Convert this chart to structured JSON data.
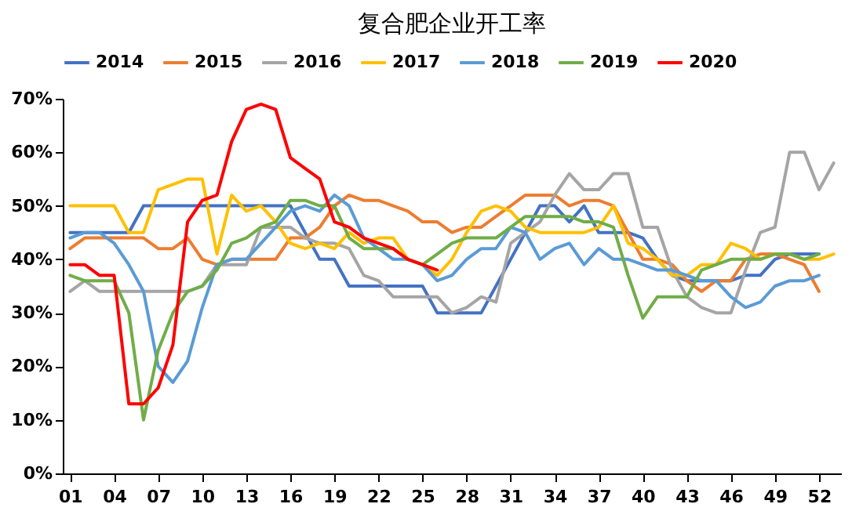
{
  "chart_data": {
    "type": "line",
    "title": "复合肥企业开工率",
    "legend": "top",
    "x": [
      1,
      2,
      3,
      4,
      5,
      6,
      7,
      8,
      9,
      10,
      11,
      12,
      13,
      14,
      15,
      16,
      17,
      18,
      19,
      20,
      21,
      22,
      23,
      24,
      25,
      26,
      27,
      28,
      29,
      30,
      31,
      32,
      33,
      34,
      35,
      36,
      37,
      38,
      39,
      40,
      41,
      42,
      43,
      44,
      45,
      46,
      47,
      48,
      49,
      50,
      51,
      52,
      53
    ],
    "xlim": [
      0.5,
      53.5
    ],
    "xticks": [
      {
        "value": 1,
        "label": "01"
      },
      {
        "value": 4,
        "label": "04"
      },
      {
        "value": 7,
        "label": "07"
      },
      {
        "value": 10,
        "label": "10"
      },
      {
        "value": 13,
        "label": "13"
      },
      {
        "value": 16,
        "label": "16"
      },
      {
        "value": 19,
        "label": "19"
      },
      {
        "value": 22,
        "label": "22"
      },
      {
        "value": 25,
        "label": "25"
      },
      {
        "value": 28,
        "label": "28"
      },
      {
        "value": 31,
        "label": "31"
      },
      {
        "value": 34,
        "label": "34"
      },
      {
        "value": 37,
        "label": "37"
      },
      {
        "value": 40,
        "label": "40"
      },
      {
        "value": 43,
        "label": "43"
      },
      {
        "value": 46,
        "label": "46"
      },
      {
        "value": 49,
        "label": "49"
      },
      {
        "value": 52,
        "label": "52"
      }
    ],
    "ylim": [
      0,
      70
    ],
    "yticks": [
      {
        "value": 0,
        "label": "0%"
      },
      {
        "value": 10,
        "label": "10%"
      },
      {
        "value": 20,
        "label": "20%"
      },
      {
        "value": 30,
        "label": "30%"
      },
      {
        "value": 40,
        "label": "40%"
      },
      {
        "value": 50,
        "label": "50%"
      },
      {
        "value": 60,
        "label": "60%"
      },
      {
        "value": 70,
        "label": "70%"
      }
    ],
    "series": [
      {
        "name": "2014",
        "color": "#4472c4",
        "values": [
          45,
          45,
          45,
          45,
          45,
          50,
          50,
          50,
          50,
          50,
          50,
          50,
          50,
          50,
          50,
          50,
          45,
          40,
          40,
          35,
          35,
          35,
          35,
          35,
          35,
          30,
          30,
          30,
          30,
          35,
          40,
          45,
          50,
          50,
          47,
          50,
          45,
          45,
          45,
          44,
          40,
          37,
          36,
          36,
          36,
          36,
          37,
          37,
          40,
          41,
          41,
          41,
          null
        ]
      },
      {
        "name": "2015",
        "color": "#ed7d31",
        "values": [
          42,
          44,
          44,
          44,
          44,
          44,
          42,
          42,
          44,
          40,
          39,
          40,
          40,
          40,
          40,
          44,
          44,
          46,
          50,
          52,
          51,
          51,
          50,
          49,
          47,
          47,
          45,
          46,
          46,
          48,
          50,
          52,
          52,
          52,
          50,
          51,
          51,
          50,
          45,
          40,
          40,
          39,
          36,
          34,
          36,
          36,
          40,
          41,
          41,
          40,
          39,
          34,
          null
        ]
      },
      {
        "name": "2016",
        "color": "#a5a5a5",
        "values": [
          34,
          36,
          34,
          34,
          34,
          34,
          34,
          34,
          34,
          35,
          39,
          39,
          39,
          46,
          46,
          46,
          44,
          43,
          43,
          42,
          37,
          36,
          33,
          33,
          33,
          33,
          30,
          31,
          33,
          32,
          43,
          45,
          47,
          52,
          56,
          53,
          53,
          56,
          56,
          46,
          46,
          38,
          33,
          31,
          30,
          30,
          38,
          45,
          46,
          60,
          60,
          53,
          58
        ]
      },
      {
        "name": "2017",
        "color": "#ffc000",
        "values": [
          50,
          50,
          50,
          50,
          45,
          45,
          53,
          54,
          55,
          55,
          41,
          52,
          49,
          50,
          47,
          43,
          42,
          43,
          42,
          45,
          43,
          44,
          44,
          40,
          39,
          37,
          40,
          45,
          49,
          50,
          49,
          46,
          45,
          45,
          45,
          45,
          46,
          50,
          43,
          42,
          40,
          37,
          37,
          39,
          39,
          43,
          42,
          40,
          41,
          41,
          40,
          40,
          41
        ]
      },
      {
        "name": "2018",
        "color": "#5b9bd5",
        "values": [
          44,
          45,
          45,
          43,
          39,
          34,
          20,
          17,
          21,
          31,
          39,
          40,
          40,
          43,
          46,
          49,
          50,
          49,
          52,
          50,
          44,
          42,
          40,
          40,
          39,
          36,
          37,
          40,
          42,
          42,
          46,
          45,
          40,
          42,
          43,
          39,
          42,
          40,
          40,
          39,
          38,
          38,
          37,
          36,
          36,
          33,
          31,
          32,
          35,
          36,
          36,
          37,
          null
        ]
      },
      {
        "name": "2019",
        "color": "#70ad47",
        "values": [
          37,
          36,
          36,
          36,
          30,
          10,
          23,
          30,
          34,
          35,
          38,
          43,
          44,
          46,
          47,
          51,
          51,
          50,
          50,
          44,
          42,
          42,
          42,
          40,
          39,
          41,
          43,
          44,
          44,
          44,
          46,
          48,
          48,
          48,
          48,
          47,
          47,
          46,
          37,
          29,
          33,
          33,
          33,
          38,
          39,
          40,
          40,
          40,
          41,
          41,
          40,
          41,
          null
        ]
      },
      {
        "name": "2020",
        "color": "#ff0000",
        "values": [
          39,
          39,
          37,
          37,
          13,
          13,
          16,
          24,
          47,
          51,
          52,
          62,
          68,
          69,
          68,
          59,
          57,
          55,
          47,
          46,
          44,
          43,
          42,
          40,
          39,
          38,
          null,
          null,
          null,
          null,
          null,
          null,
          null,
          null,
          null,
          null,
          null,
          null,
          null,
          null,
          null,
          null,
          null,
          null,
          null,
          null,
          null,
          null,
          null,
          null,
          null,
          null,
          null
        ]
      }
    ]
  }
}
